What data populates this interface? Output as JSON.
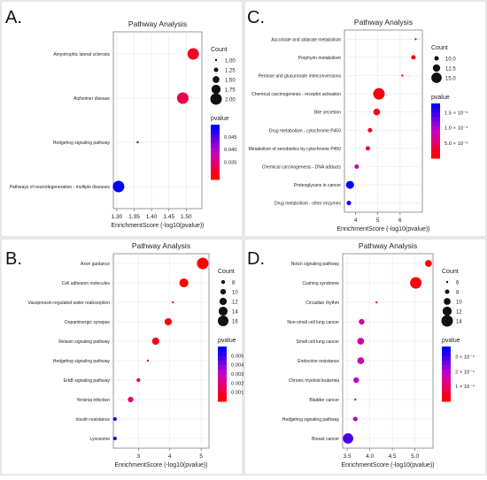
{
  "chart_data": [
    {
      "panel_label": "A.",
      "type": "scatter",
      "title": "Pathway Analysis",
      "xlabel": "EnrichmentScore (-log10(pvalue))",
      "xlim": [
        1.29,
        1.545
      ],
      "xticks": [
        "1.30",
        "1.35",
        "1.40",
        "1.45",
        "1.50"
      ],
      "xtick_values": [
        1.3,
        1.35,
        1.4,
        1.45,
        1.5
      ],
      "pvalue_range": [
        0.028,
        0.05
      ],
      "size_range": [
        1,
        2
      ],
      "points": [
        {
          "term": "Amyotrophic lateral sclerosis",
          "x": 1.52,
          "count": 2,
          "pvalue": 0.03
        },
        {
          "term": "Alzheimer disease",
          "x": 1.49,
          "count": 2,
          "pvalue": 0.032
        },
        {
          "term": "Hedgehog signaling pathway",
          "x": 1.36,
          "count": 1,
          "pvalue": 0.045
        },
        {
          "term": "Pathways of neurodegeneration - multiple diseases",
          "x": 1.305,
          "count": 2,
          "pvalue": 0.05
        }
      ],
      "legend_count": {
        "title": "Count",
        "labels": [
          "1.00",
          "1.25",
          "1.50",
          "1.75",
          "2.00"
        ],
        "values": [
          1.0,
          1.25,
          1.5,
          1.75,
          2.0
        ]
      },
      "legend_pvalue": {
        "title": "pvalue",
        "labels": [
          "0.045",
          "0.040",
          "0.035"
        ],
        "values": [
          0.045,
          0.04,
          0.035
        ]
      }
    },
    {
      "panel_label": "C.",
      "type": "scatter",
      "title": "Pathway Analysis",
      "xlabel": "EnrichmentScore (-log10(pvalue))",
      "xlim": [
        3.5,
        7.0
      ],
      "xticks": [
        "4",
        "5",
        "6"
      ],
      "xtick_values": [
        4,
        5,
        6
      ],
      "pvalue_range": [
        0,
        0.00018
      ],
      "size_range": [
        8,
        16
      ],
      "points": [
        {
          "term": "Ascorbate and aldarate metabolism",
          "x": 6.7,
          "count": 8,
          "pvalue": 2e-07
        },
        {
          "term": "Porphyrin metabolism",
          "x": 6.6,
          "count": 10,
          "pvalue": 3e-07
        },
        {
          "term": "Pentose and glucuronate interconversions",
          "x": 6.1,
          "count": 8,
          "pvalue": 8e-07
        },
        {
          "term": "Chemical carcinogenesis - receptor activation",
          "x": 5.05,
          "count": 16,
          "pvalue": 9e-06
        },
        {
          "term": "Bile secretion",
          "x": 4.95,
          "count": 12,
          "pvalue": 1.1e-05
        },
        {
          "term": "Drug metabolism - cytochrome P450",
          "x": 4.65,
          "count": 10,
          "pvalue": 2.2e-05
        },
        {
          "term": "Metabolism of xenobiotics by cytochrome P450",
          "x": 4.55,
          "count": 10,
          "pvalue": 2.8e-05
        },
        {
          "term": "Chemical carcinogenesis - DNA adducts",
          "x": 4.05,
          "count": 10,
          "pvalue": 8.9e-05
        },
        {
          "term": "Proteoglycans in cancer",
          "x": 3.75,
          "count": 13,
          "pvalue": 0.000178
        },
        {
          "term": "Drug metabolism - other enzymes",
          "x": 3.7,
          "count": 10,
          "pvalue": 0.000175
        }
      ],
      "legend_count": {
        "title": "Count",
        "labels": [
          "10.0",
          "12.5",
          "15.0"
        ],
        "values": [
          10.0,
          12.5,
          15.0
        ]
      },
      "legend_pvalue": {
        "title": "pvalue",
        "labels": [
          "1.5 × 10⁻⁴",
          "1.0 × 10⁻⁴",
          "5.0 × 10⁻⁵"
        ],
        "values": [
          0.00015,
          0.0001,
          5e-05
        ]
      }
    },
    {
      "panel_label": "B.",
      "type": "scatter",
      "title": "Pathway Analysis",
      "xlabel": "EnrichmentScore (-log10(pvalue))",
      "xlim": [
        2.2,
        5.25
      ],
      "xticks": [
        "3",
        "4",
        "5"
      ],
      "xtick_values": [
        3,
        4,
        5
      ],
      "pvalue_range": [
        0,
        0.006
      ],
      "size_range": [
        6,
        17
      ],
      "points": [
        {
          "term": "Axon guidance",
          "x": 5.05,
          "count": 17,
          "pvalue": 1e-05
        },
        {
          "term": "Cell adhesion molecules",
          "x": 4.45,
          "count": 14,
          "pvalue": 4e-05
        },
        {
          "term": "Vasopressin-regulated water reabsorption",
          "x": 4.1,
          "count": 6,
          "pvalue": 8e-05
        },
        {
          "term": "Dopaminergic synapse",
          "x": 3.95,
          "count": 12,
          "pvalue": 0.00011
        },
        {
          "term": "Relaxin signaling pathway",
          "x": 3.55,
          "count": 12,
          "pvalue": 0.00028
        },
        {
          "term": "Hedgehog signaling pathway",
          "x": 3.3,
          "count": 6,
          "pvalue": 0.0005
        },
        {
          "term": "ErbB signaling pathway",
          "x": 3.0,
          "count": 8,
          "pvalue": 0.001
        },
        {
          "term": "Yersinia infection",
          "x": 2.75,
          "count": 10,
          "pvalue": 0.0018
        },
        {
          "term": "Insulin resistance",
          "x": 2.25,
          "count": 8,
          "pvalue": 0.0056
        },
        {
          "term": "Lysosome",
          "x": 2.25,
          "count": 8,
          "pvalue": 0.0056
        }
      ],
      "legend_count": {
        "title": "Count",
        "labels": [
          "8",
          "10",
          "12",
          "14",
          "16"
        ],
        "values": [
          8,
          10,
          12,
          14,
          16
        ]
      },
      "legend_pvalue": {
        "title": "pvalue",
        "labels": [
          "0.005",
          "0.004",
          "0.003",
          "0.002",
          "0.001"
        ],
        "values": [
          0.005,
          0.004,
          0.003,
          0.002,
          0.001
        ]
      }
    },
    {
      "panel_label": "D.",
      "type": "scatter",
      "title": "Pathway Analysis",
      "xlabel": "EnrichmentScore (-log10(pvalue))",
      "xlim": [
        3.4,
        5.4
      ],
      "xticks": [
        "3.5",
        "4.0",
        "4.5",
        "5.0"
      ],
      "xtick_values": [
        3.5,
        4.0,
        4.5,
        5.0
      ],
      "pvalue_range": [
        0,
        0.00037
      ],
      "size_range": [
        6,
        14
      ],
      "points": [
        {
          "term": "Notch signaling pathway",
          "x": 5.3,
          "count": 10,
          "pvalue": 5e-06
        },
        {
          "term": "Cushing syndrome",
          "x": 5.02,
          "count": 14,
          "pvalue": 1e-05
        },
        {
          "term": "Circadian rhythm",
          "x": 4.15,
          "count": 6,
          "pvalue": 7e-05
        },
        {
          "term": "Non-small cell lung cancer",
          "x": 3.82,
          "count": 9,
          "pvalue": 0.00015
        },
        {
          "term": "Small cell lung cancer",
          "x": 3.8,
          "count": 10,
          "pvalue": 0.00016
        },
        {
          "term": "Endocrine resistance",
          "x": 3.8,
          "count": 10,
          "pvalue": 0.00016
        },
        {
          "term": "Chronic myeloid leukemia",
          "x": 3.7,
          "count": 9,
          "pvalue": 0.0002
        },
        {
          "term": "Bladder cancer",
          "x": 3.68,
          "count": 6,
          "pvalue": 0.00021
        },
        {
          "term": "Hedgehog signaling pathway",
          "x": 3.68,
          "count": 8,
          "pvalue": 0.00021
        },
        {
          "term": "Breast cancer",
          "x": 3.52,
          "count": 13,
          "pvalue": 0.0003
        }
      ],
      "legend_count": {
        "title": "Count",
        "labels": [
          "6",
          "8",
          "10",
          "12",
          "14"
        ],
        "values": [
          6,
          8,
          10,
          12,
          14
        ]
      },
      "legend_pvalue": {
        "title": "pvalue",
        "labels": [
          "3 × 10⁻⁴",
          "2 × 10⁻⁴",
          "1 × 10⁻⁴"
        ],
        "values": [
          0.0003,
          0.0002,
          0.0001
        ]
      }
    }
  ],
  "colors": {
    "pvalue_low": "#ff0000",
    "pvalue_high": "#0000ff",
    "panel_border": "#cfcfcf",
    "text": "#222222"
  }
}
